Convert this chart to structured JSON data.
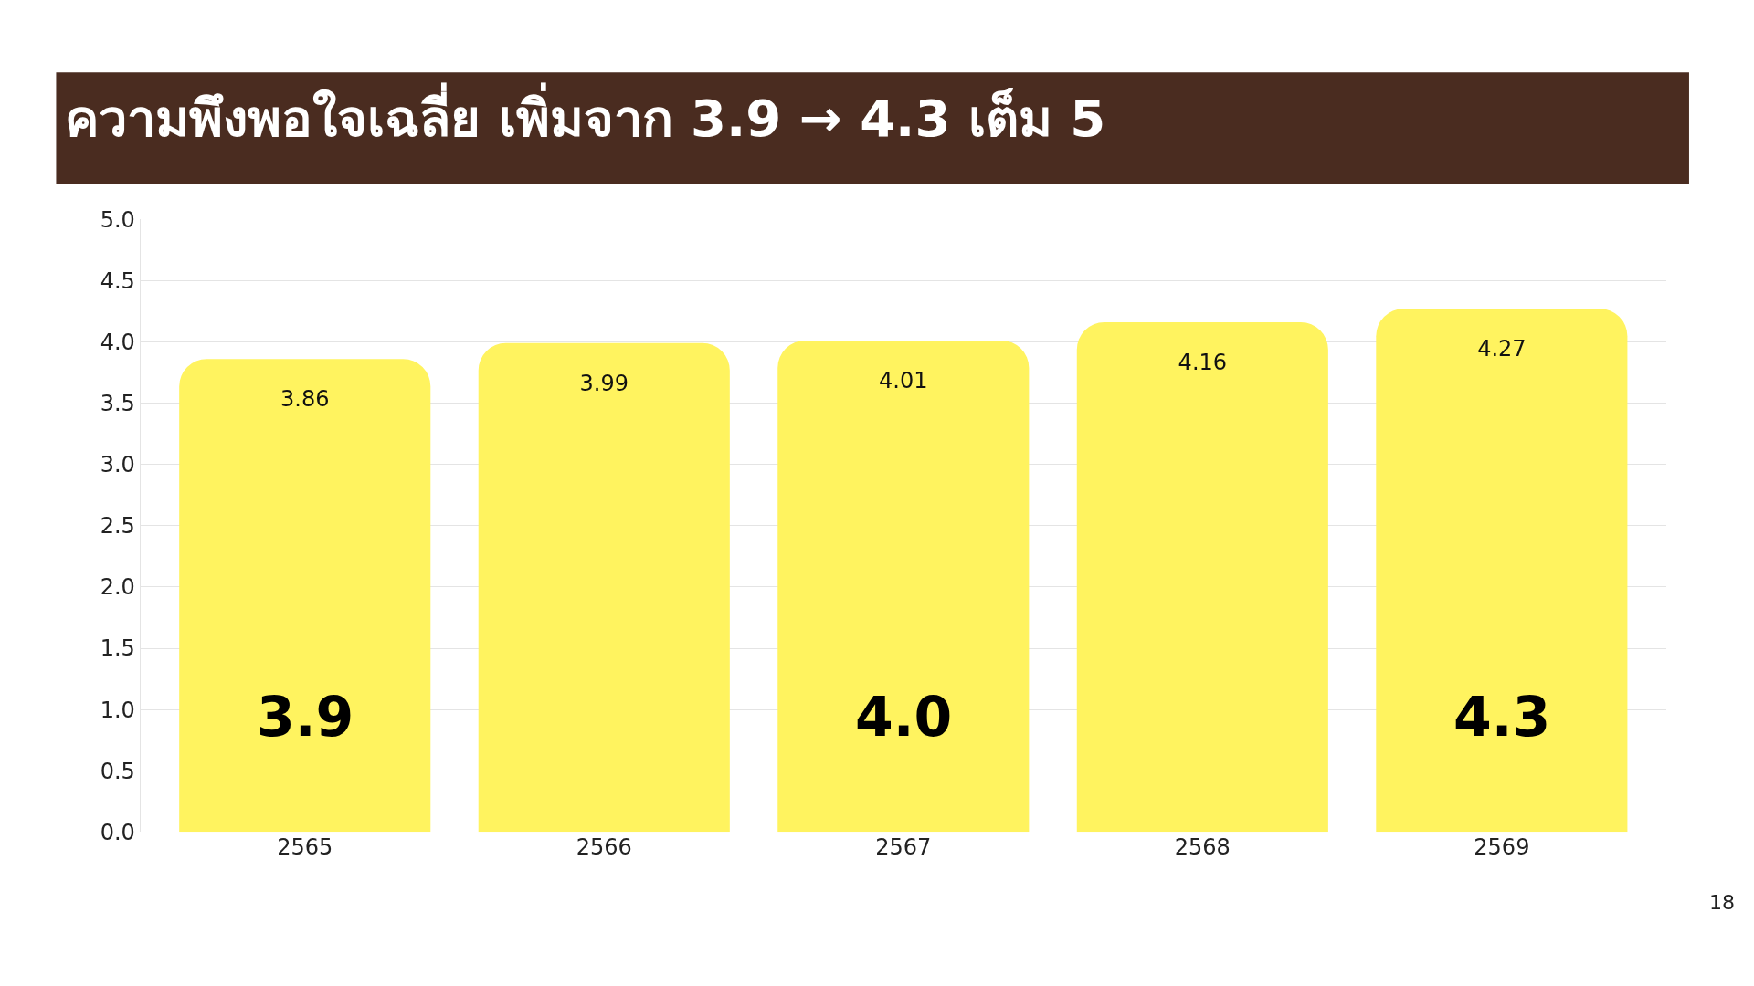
{
  "chart_data": {
    "type": "bar",
    "title": "ความพึงพอใจเฉลี่ย เพิ่มจาก 3.9 → 4.3 เต็ม 5",
    "categories": [
      "2565",
      "2566",
      "2567",
      "2568",
      "2569"
    ],
    "values": [
      3.86,
      3.99,
      4.01,
      4.16,
      4.27
    ],
    "color": "#fff35f",
    "data_labels": true,
    "ylim": [
      0,
      5
    ],
    "yticks": [
      "0.0",
      "0.5",
      "1.0",
      "1.5",
      "2.0",
      "2.5",
      "3.0",
      "3.5",
      "4.0",
      "4.5",
      "5.0"
    ],
    "grid": "y",
    "annotations": [
      "3.9",
      "4.0",
      "4.3",
      "18"
    ]
  }
}
